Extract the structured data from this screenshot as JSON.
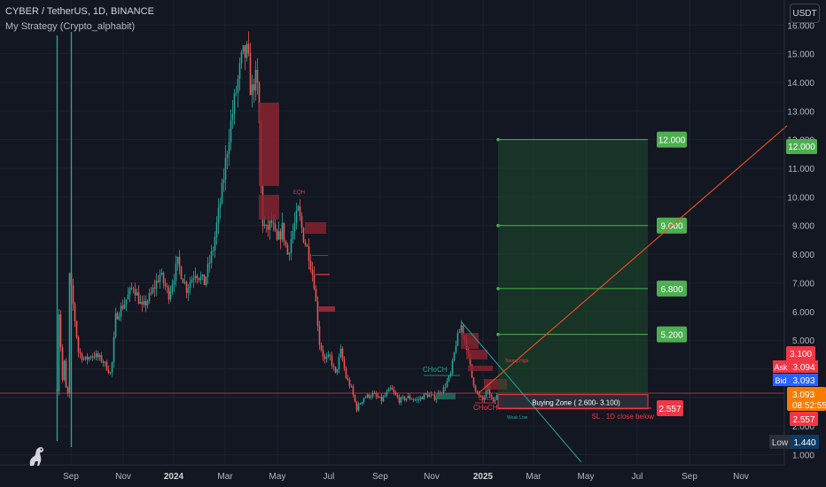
{
  "header": {
    "title": "CYBER / TetherUS, 1D, BINANCE",
    "indicator": "My Strategy (Crypto_alphabit)"
  },
  "currency_button": "USDT",
  "price_axis": {
    "ticks": [
      "16.000",
      "15.000",
      "14.000",
      "13.000",
      "12.000",
      "11.000",
      "10.000",
      "9.000",
      "8.000",
      "7.000",
      "6.000",
      "5.000",
      "4.000",
      "3.000",
      "2.000",
      "1.000"
    ],
    "flags": [
      {
        "text": "12.000",
        "color": "#4caf50",
        "y": 12.0
      },
      {
        "text": "3.100",
        "color": "#f23645",
        "y": 3.1
      },
      {
        "text": "3.093",
        "color": "#f23645",
        "y": 2.72
      }
    ],
    "ask": {
      "label": "Ask",
      "value": "3.094",
      "color": "#f23645"
    },
    "bid": {
      "label": "Bid",
      "value": "3.093",
      "color": "#2962ff"
    },
    "current": {
      "price": "3.093",
      "countdown": "08:52:55",
      "color": "#f57c00"
    },
    "sl_flag": {
      "text": "2.557",
      "color": "#f23645"
    },
    "low": {
      "label": "Low",
      "value": "1.440"
    }
  },
  "time_axis": {
    "ticks": [
      {
        "label": "Sep",
        "bold": false
      },
      {
        "label": "Nov",
        "bold": false
      },
      {
        "label": "2024",
        "bold": true
      },
      {
        "label": "Mar",
        "bold": false
      },
      {
        "label": "May",
        "bold": false
      },
      {
        "label": "Jul",
        "bold": false
      },
      {
        "label": "Sep",
        "bold": false
      },
      {
        "label": "Nov",
        "bold": false
      },
      {
        "label": "2025",
        "bold": true
      },
      {
        "label": "Mar",
        "bold": false
      },
      {
        "label": "May",
        "bold": false
      },
      {
        "label": "Jul",
        "bold": false
      },
      {
        "label": "Sep",
        "bold": false
      },
      {
        "label": "Nov",
        "bold": false
      }
    ]
  },
  "targets": [
    {
      "label": "12.000",
      "price": 12.0
    },
    {
      "label": "9.000",
      "price": 9.0
    },
    {
      "label": "6.800",
      "price": 6.8
    },
    {
      "label": "5.200",
      "price": 5.2
    }
  ],
  "buying_zone": {
    "label": "Buying Zone ( 2.600- 3.100)",
    "low": 2.6,
    "high": 3.1
  },
  "stop_loss": {
    "label": "2.557",
    "note": "SL . 1D close below",
    "price": 2.557
  },
  "annotations": [
    {
      "text": "CHoCH",
      "color": "#26a69a"
    },
    {
      "text": "CHoCH",
      "color": "#f23645"
    },
    {
      "text": "CHoCH",
      "color": "#f23645"
    },
    {
      "text": "EQH",
      "color": "#f23645"
    },
    {
      "text": "Strong High",
      "color": "#f23645"
    },
    {
      "text": "Weak Low",
      "color": "#26a69a"
    }
  ],
  "colors": {
    "up": "#26a69a",
    "down": "#ef5350",
    "target": "#4caf50",
    "background": "#131722",
    "grid": "#1e222d"
  }
}
